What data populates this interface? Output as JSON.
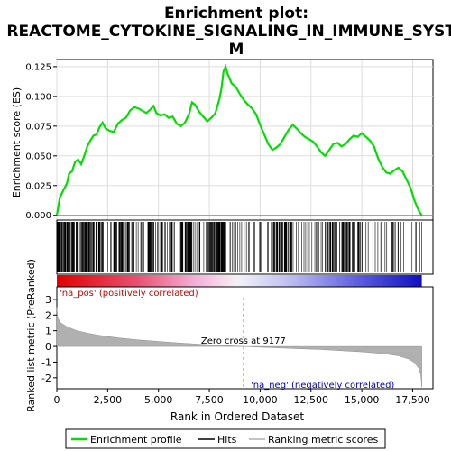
{
  "chart_data": {
    "type": "line",
    "title_line1": "Enrichment plot:",
    "title_line2": "REACTOME_CYTOKINE_SIGNALING_IN_IMMUNE_SYSTE",
    "title_line3": "M",
    "top_ylabel": "Enrichment score (ES)",
    "bottom_ylabel": "Ranked list metric (PreRanked)",
    "xlabel": "Rank in Ordered Dataset",
    "xlim": [
      0,
      18500
    ],
    "es_ylim": [
      -0.004,
      0.131
    ],
    "es_yticks": [
      0.0,
      0.025,
      0.05,
      0.075,
      0.1,
      0.125
    ],
    "es_ytick_labels": [
      "0.000",
      "0.025",
      "0.050",
      "0.075",
      "0.100",
      "0.125"
    ],
    "metric_ylim": [
      -2.7,
      3.8
    ],
    "metric_yticks": [
      -2,
      -1,
      0,
      1,
      2,
      3
    ],
    "metric_ytick_labels": [
      "-2",
      "-1",
      "0",
      "1",
      "2",
      "3"
    ],
    "xticks": [
      0,
      2500,
      5000,
      7500,
      10000,
      12500,
      15000,
      17500
    ],
    "xtick_labels": [
      "0",
      "2,500",
      "5,000",
      "7,500",
      "10,000",
      "12,500",
      "15,000",
      "17,500"
    ],
    "zero_cross": 9177,
    "zero_cross_label": "Zero cross at 9177",
    "pos_label": "'na_pos' (positively correlated)",
    "neg_label": "'na_neg' (negatively correlated)",
    "profile_color": "#00e000",
    "es_profile": [
      [
        0,
        0.0
      ],
      [
        150,
        0.015
      ],
      [
        350,
        0.022
      ],
      [
        500,
        0.027
      ],
      [
        600,
        0.035
      ],
      [
        750,
        0.037
      ],
      [
        900,
        0.045
      ],
      [
        1050,
        0.047
      ],
      [
        1200,
        0.043
      ],
      [
        1350,
        0.05
      ],
      [
        1500,
        0.058
      ],
      [
        1650,
        0.063
      ],
      [
        1800,
        0.067
      ],
      [
        1950,
        0.068
      ],
      [
        2100,
        0.074
      ],
      [
        2250,
        0.078
      ],
      [
        2400,
        0.073
      ],
      [
        2600,
        0.071
      ],
      [
        2800,
        0.07
      ],
      [
        3000,
        0.077
      ],
      [
        3200,
        0.08
      ],
      [
        3400,
        0.082
      ],
      [
        3600,
        0.088
      ],
      [
        3800,
        0.091
      ],
      [
        4000,
        0.09
      ],
      [
        4200,
        0.088
      ],
      [
        4400,
        0.086
      ],
      [
        4600,
        0.089
      ],
      [
        4750,
        0.092
      ],
      [
        4900,
        0.086
      ],
      [
        5100,
        0.084
      ],
      [
        5300,
        0.085
      ],
      [
        5500,
        0.082
      ],
      [
        5700,
        0.083
      ],
      [
        5900,
        0.077
      ],
      [
        6100,
        0.075
      ],
      [
        6300,
        0.078
      ],
      [
        6500,
        0.085
      ],
      [
        6650,
        0.095
      ],
      [
        6800,
        0.093
      ],
      [
        7000,
        0.087
      ],
      [
        7200,
        0.083
      ],
      [
        7400,
        0.079
      ],
      [
        7600,
        0.082
      ],
      [
        7800,
        0.086
      ],
      [
        8000,
        0.098
      ],
      [
        8100,
        0.107
      ],
      [
        8200,
        0.121
      ],
      [
        8300,
        0.125
      ],
      [
        8400,
        0.119
      ],
      [
        8600,
        0.111
      ],
      [
        8800,
        0.108
      ],
      [
        9000,
        0.102
      ],
      [
        9200,
        0.097
      ],
      [
        9400,
        0.093
      ],
      [
        9600,
        0.09
      ],
      [
        9800,
        0.085
      ],
      [
        10000,
        0.076
      ],
      [
        10200,
        0.068
      ],
      [
        10400,
        0.06
      ],
      [
        10600,
        0.055
      ],
      [
        10800,
        0.057
      ],
      [
        11000,
        0.06
      ],
      [
        11200,
        0.066
      ],
      [
        11400,
        0.072
      ],
      [
        11600,
        0.076
      ],
      [
        11800,
        0.073
      ],
      [
        12000,
        0.069
      ],
      [
        12200,
        0.066
      ],
      [
        12400,
        0.064
      ],
      [
        12600,
        0.062
      ],
      [
        12800,
        0.058
      ],
      [
        13000,
        0.053
      ],
      [
        13200,
        0.05
      ],
      [
        13400,
        0.055
      ],
      [
        13600,
        0.06
      ],
      [
        13800,
        0.061
      ],
      [
        14000,
        0.058
      ],
      [
        14200,
        0.06
      ],
      [
        14400,
        0.064
      ],
      [
        14600,
        0.067
      ],
      [
        14800,
        0.066
      ],
      [
        15000,
        0.069
      ],
      [
        15200,
        0.066
      ],
      [
        15400,
        0.063
      ],
      [
        15600,
        0.058
      ],
      [
        15800,
        0.048
      ],
      [
        16000,
        0.041
      ],
      [
        16200,
        0.036
      ],
      [
        16400,
        0.035
      ],
      [
        16600,
        0.038
      ],
      [
        16800,
        0.04
      ],
      [
        17000,
        0.037
      ],
      [
        17200,
        0.03
      ],
      [
        17400,
        0.023
      ],
      [
        17600,
        0.012
      ],
      [
        17800,
        0.004
      ],
      [
        17950,
        0.0
      ]
    ],
    "metric_curve": [
      [
        0,
        2.5
      ],
      [
        50,
        1.8
      ],
      [
        200,
        1.5
      ],
      [
        500,
        1.25
      ],
      [
        1000,
        1.0
      ],
      [
        1500,
        0.85
      ],
      [
        2000,
        0.72
      ],
      [
        3000,
        0.55
      ],
      [
        4000,
        0.42
      ],
      [
        5000,
        0.32
      ],
      [
        6000,
        0.22
      ],
      [
        7000,
        0.14
      ],
      [
        8000,
        0.07
      ],
      [
        9177,
        0.0
      ],
      [
        10000,
        -0.05
      ],
      [
        11000,
        -0.1
      ],
      [
        12000,
        -0.15
      ],
      [
        13000,
        -0.2
      ],
      [
        14000,
        -0.27
      ],
      [
        15000,
        -0.35
      ],
      [
        16000,
        -0.45
      ],
      [
        16800,
        -0.6
      ],
      [
        17300,
        -0.8
      ],
      [
        17600,
        -1.05
      ],
      [
        17800,
        -1.4
      ],
      [
        17900,
        -1.8
      ],
      [
        17950,
        -2.6
      ]
    ]
  },
  "legend": {
    "items": [
      {
        "label": "Enrichment profile",
        "color": "#00e000"
      },
      {
        "label": "Hits",
        "color": "#000000"
      },
      {
        "label": "Ranking metric scores",
        "color": "#b0b0b0"
      }
    ]
  }
}
